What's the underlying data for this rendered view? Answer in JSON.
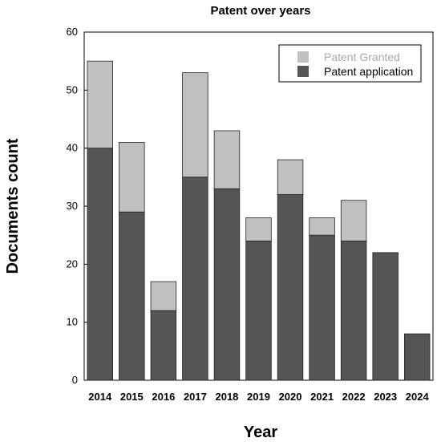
{
  "chart_data": {
    "type": "bar",
    "stacked": true,
    "title": "Patent over years",
    "xlabel": "Year",
    "ylabel": "Documents count",
    "ylim": [
      0,
      60
    ],
    "yticks": [
      0,
      10,
      20,
      30,
      40,
      50,
      60
    ],
    "categories": [
      "2014",
      "2015",
      "2016",
      "2017",
      "2018",
      "2019",
      "2020",
      "2021",
      "2022",
      "2023",
      "2024"
    ],
    "series": [
      {
        "name": "Patent application",
        "color": "#555555",
        "values": [
          40,
          29,
          12,
          35,
          33,
          24,
          32,
          25,
          24,
          22,
          8
        ]
      },
      {
        "name": "Patent Granted",
        "color": "#c0c0c0",
        "values": [
          15,
          12,
          5,
          18,
          10,
          4,
          6,
          3,
          7,
          0,
          0
        ]
      }
    ],
    "legend": {
      "placement": "top-right",
      "entries": [
        {
          "label": "Patent Granted",
          "color": "#c0c0c0",
          "text_color": "#aaaaaa"
        },
        {
          "label": "Patent application",
          "color": "#555555",
          "text_color": "#000000"
        }
      ]
    },
    "grid": false
  }
}
